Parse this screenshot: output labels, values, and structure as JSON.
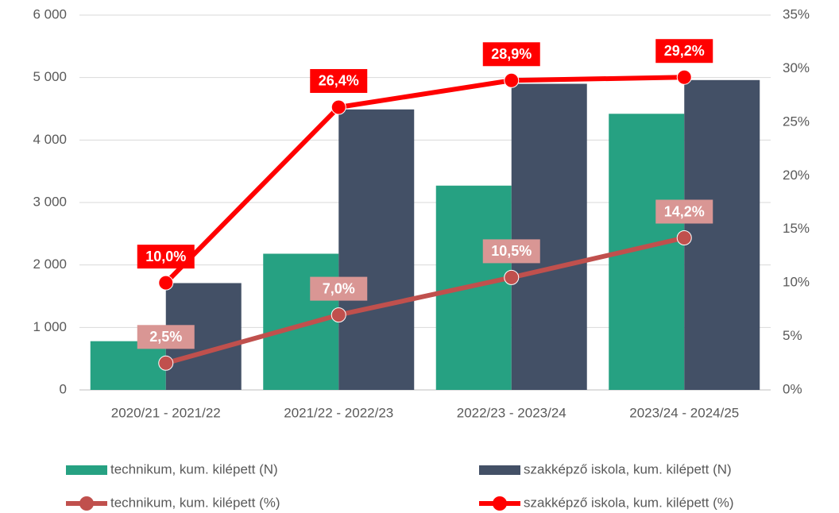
{
  "chart_data": {
    "type": "bar",
    "categories": [
      "2020/21 - 2021/22",
      "2021/22 - 2022/23",
      "2022/23 - 2023/24",
      "2023/24 - 2024/25"
    ],
    "series": [
      {
        "name": "technikum, kum. kilépett (N)",
        "type": "bar",
        "color": "#26a182",
        "values": [
          780,
          2180,
          3270,
          4420
        ]
      },
      {
        "name": "szakképző iskola, kum. kilépett (N)",
        "type": "bar",
        "color": "#435066",
        "values": [
          1710,
          4490,
          4900,
          4960
        ]
      },
      {
        "name": "technikum, kum. kilépett (%)",
        "type": "line",
        "axis": "y2",
        "color": "#c0504d",
        "label_color": "#d99694",
        "values": [
          2.5,
          7.0,
          10.5,
          14.2
        ],
        "value_labels": [
          "2,5%",
          "7,0%",
          "10,5%",
          "14,2%"
        ]
      },
      {
        "name": "szakképző iskola, kum. kilépett (%)",
        "type": "line",
        "axis": "y2",
        "color": "#ff0000",
        "label_color": "#ff0000",
        "values": [
          10.0,
          26.4,
          28.9,
          29.2
        ],
        "value_labels": [
          "10,0%",
          "26,4%",
          "28,9%",
          "29,2%"
        ]
      }
    ],
    "ylim": [
      0,
      6000
    ],
    "yticks": [
      0,
      {
        "value": 1000,
        "label": "1 000"
      },
      {
        "value": 2000,
        "label": "2 000"
      },
      {
        "value": 3000,
        "label": "3 000"
      },
      {
        "value": 4000,
        "label": "4 000"
      },
      {
        "value": 5000,
        "label": "5 000"
      },
      {
        "value": 6000,
        "label": "6 000"
      }
    ],
    "y2lim": [
      0,
      35
    ],
    "y2ticks": [
      {
        "value": 0,
        "label": "0%"
      },
      {
        "value": 5,
        "label": "5%"
      },
      {
        "value": 10,
        "label": "10%"
      },
      {
        "value": 15,
        "label": "15%"
      },
      {
        "value": 20,
        "label": "20%"
      },
      {
        "value": 25,
        "label": "25%"
      },
      {
        "value": 30,
        "label": "30%"
      },
      {
        "value": 35,
        "label": "35%"
      }
    ],
    "grid": true,
    "legend": "bottom"
  }
}
